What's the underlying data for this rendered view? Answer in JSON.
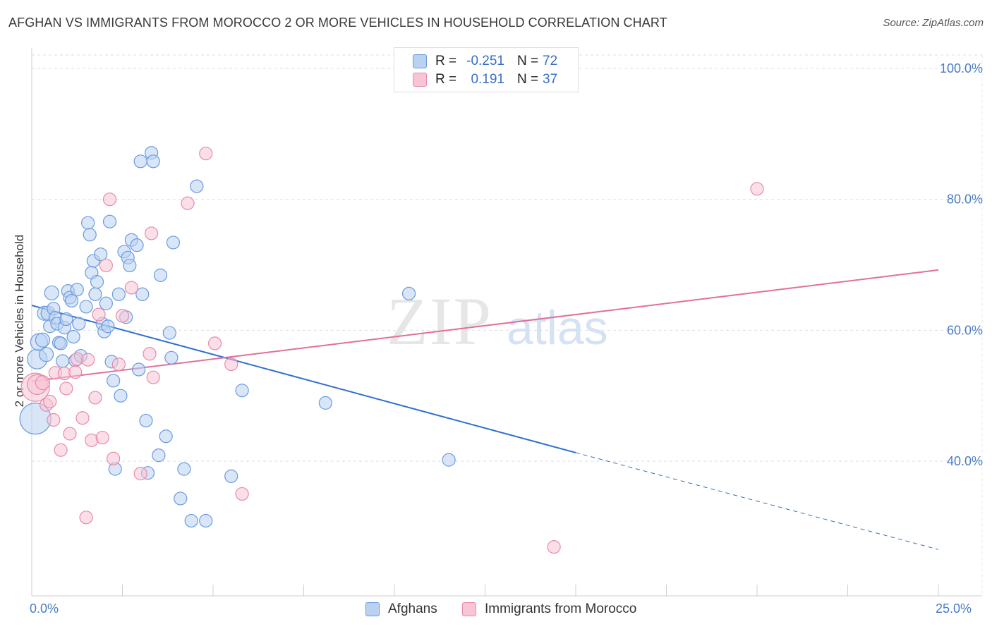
{
  "title": "AFGHAN VS IMMIGRANTS FROM MOROCCO 2 OR MORE VEHICLES IN HOUSEHOLD CORRELATION CHART",
  "source": "Source: ZipAtlas.com",
  "watermark": "ZIPatlas",
  "colors": {
    "blue": "#6a9bde",
    "blue_fill": "#b9d2f2",
    "blue_line": "#2f6fd0",
    "pink": "#e88aa8",
    "pink_fill": "#f7c5d5",
    "pink_line": "#e0709a",
    "grid": "#dddddd",
    "axis_text": "#4a7cc9"
  },
  "legend": {
    "rows": [
      {
        "r_label": "R =",
        "r_value": "-0.251",
        "n_label": "N =",
        "n_value": "72"
      },
      {
        "r_label": "R =",
        "r_value": "0.191",
        "n_label": "N =",
        "n_value": "37"
      }
    ]
  },
  "bottom_legend": {
    "items": [
      "Afghans",
      "Immigrants from Morocco"
    ]
  },
  "chart_data": {
    "type": "scatter",
    "title": "AFGHAN VS IMMIGRANTS FROM MOROCCO 2 OR MORE VEHICLES IN HOUSEHOLD CORRELATION CHART",
    "xlabel": "",
    "ylabel": "2 or more Vehicles in Household",
    "xlim": [
      0,
      25
    ],
    "ylim": [
      20,
      104
    ],
    "x_tick_labels": [
      "0.0%",
      "25.0%"
    ],
    "y_ticks": [
      40,
      60,
      80,
      100
    ],
    "y_tick_labels": [
      "40.0%",
      "60.0%",
      "80.0%",
      "100.0%"
    ],
    "grid": true,
    "series": [
      {
        "name": "Afghans",
        "color": "blue",
        "r": -0.251,
        "n": 72,
        "trend": {
          "x0": 0,
          "y0": 63.8,
          "x1": 15,
          "y1": 41.3,
          "dash_to_x": 25,
          "dash_to_y": 26.5
        },
        "points": [
          [
            0.1,
            46.5,
            22
          ],
          [
            0.15,
            55.6,
            14
          ],
          [
            0.2,
            58.2,
            12
          ],
          [
            0.3,
            58.5,
            10
          ],
          [
            0.35,
            62.6,
            10
          ],
          [
            0.4,
            56.3,
            10
          ],
          [
            0.45,
            62.6,
            10
          ],
          [
            0.5,
            60.6,
            9
          ],
          [
            0.55,
            65.7,
            10
          ],
          [
            0.6,
            63.3,
            9
          ],
          [
            0.65,
            61.9,
            9
          ],
          [
            0.7,
            61.0,
            9
          ],
          [
            0.75,
            58.1,
            9
          ],
          [
            0.8,
            58.0,
            9
          ],
          [
            0.85,
            55.3,
            9
          ],
          [
            0.9,
            60.4,
            9
          ],
          [
            0.95,
            61.7,
            9
          ],
          [
            1.0,
            66.0,
            9
          ],
          [
            1.05,
            65.0,
            9
          ],
          [
            1.1,
            64.5,
            9
          ],
          [
            1.15,
            59.0,
            9
          ],
          [
            1.2,
            55.4,
            9
          ],
          [
            1.25,
            66.2,
            9
          ],
          [
            1.3,
            61.0,
            9
          ],
          [
            1.35,
            56.1,
            9
          ],
          [
            1.5,
            63.6,
            9
          ],
          [
            1.55,
            76.4,
            9
          ],
          [
            1.6,
            74.6,
            9
          ],
          [
            1.65,
            68.8,
            9
          ],
          [
            1.7,
            70.6,
            9
          ],
          [
            1.75,
            65.5,
            9
          ],
          [
            1.8,
            67.4,
            9
          ],
          [
            1.9,
            71.6,
            9
          ],
          [
            1.95,
            61.0,
            9
          ],
          [
            2.0,
            59.8,
            9
          ],
          [
            2.05,
            64.1,
            9
          ],
          [
            2.1,
            60.6,
            9
          ],
          [
            2.15,
            76.6,
            9
          ],
          [
            2.2,
            55.2,
            9
          ],
          [
            2.25,
            52.3,
            9
          ],
          [
            2.3,
            38.8,
            9
          ],
          [
            2.4,
            65.5,
            9
          ],
          [
            2.45,
            50.0,
            9
          ],
          [
            2.55,
            72.0,
            9
          ],
          [
            2.6,
            62.0,
            9
          ],
          [
            2.65,
            71.1,
            9
          ],
          [
            2.7,
            69.9,
            9
          ],
          [
            2.75,
            73.8,
            9
          ],
          [
            2.9,
            73.0,
            9
          ],
          [
            2.95,
            54.0,
            9
          ],
          [
            3.0,
            85.8,
            9
          ],
          [
            3.05,
            65.5,
            9
          ],
          [
            3.15,
            46.2,
            9
          ],
          [
            3.2,
            38.2,
            9
          ],
          [
            3.3,
            87.1,
            9
          ],
          [
            3.35,
            85.8,
            9
          ],
          [
            3.5,
            40.9,
            9
          ],
          [
            3.55,
            68.4,
            9
          ],
          [
            3.7,
            43.8,
            9
          ],
          [
            3.8,
            59.6,
            9
          ],
          [
            3.85,
            55.8,
            9
          ],
          [
            3.9,
            73.4,
            9
          ],
          [
            4.1,
            34.3,
            9
          ],
          [
            4.2,
            38.8,
            9
          ],
          [
            4.4,
            30.9,
            9
          ],
          [
            4.55,
            82.0,
            9
          ],
          [
            4.8,
            30.9,
            9
          ],
          [
            5.5,
            37.7,
            9
          ],
          [
            5.8,
            50.8,
            9
          ],
          [
            8.1,
            48.9,
            9
          ],
          [
            10.4,
            65.6,
            9
          ],
          [
            11.5,
            40.2,
            9
          ]
        ]
      },
      {
        "name": "Immigrants from Morocco",
        "color": "pink",
        "r": 0.191,
        "n": 37,
        "trend": {
          "x0": 0,
          "y0": 52.2,
          "x1": 25,
          "y1": 69.2
        },
        "points": [
          [
            0.1,
            51.3,
            20
          ],
          [
            0.15,
            51.7,
            14
          ],
          [
            0.3,
            52.0,
            10
          ],
          [
            0.4,
            48.6,
            9
          ],
          [
            0.5,
            49.1,
            9
          ],
          [
            0.6,
            46.3,
            9
          ],
          [
            0.65,
            53.5,
            9
          ],
          [
            0.8,
            41.7,
            9
          ],
          [
            0.9,
            53.4,
            9
          ],
          [
            0.95,
            51.1,
            9
          ],
          [
            1.05,
            44.2,
            9
          ],
          [
            1.2,
            53.6,
            9
          ],
          [
            1.25,
            55.6,
            9
          ],
          [
            1.4,
            46.6,
            9
          ],
          [
            1.5,
            31.4,
            9
          ],
          [
            1.55,
            55.5,
            9
          ],
          [
            1.65,
            43.2,
            9
          ],
          [
            1.75,
            49.7,
            9
          ],
          [
            1.85,
            62.4,
            9
          ],
          [
            1.95,
            43.6,
            9
          ],
          [
            2.05,
            69.9,
            9
          ],
          [
            2.15,
            80.0,
            9
          ],
          [
            2.25,
            40.4,
            9
          ],
          [
            2.4,
            54.8,
            9
          ],
          [
            2.5,
            62.2,
            9
          ],
          [
            2.75,
            66.5,
            9
          ],
          [
            3.0,
            38.1,
            9
          ],
          [
            3.25,
            56.4,
            9
          ],
          [
            3.3,
            74.8,
            9
          ],
          [
            3.35,
            52.8,
            9
          ],
          [
            4.3,
            79.4,
            9
          ],
          [
            4.8,
            87.0,
            9
          ],
          [
            5.05,
            58.0,
            9
          ],
          [
            5.5,
            54.8,
            9
          ],
          [
            5.8,
            35.0,
            9
          ],
          [
            14.4,
            26.9,
            9
          ],
          [
            20.0,
            81.6,
            9
          ]
        ]
      }
    ]
  }
}
